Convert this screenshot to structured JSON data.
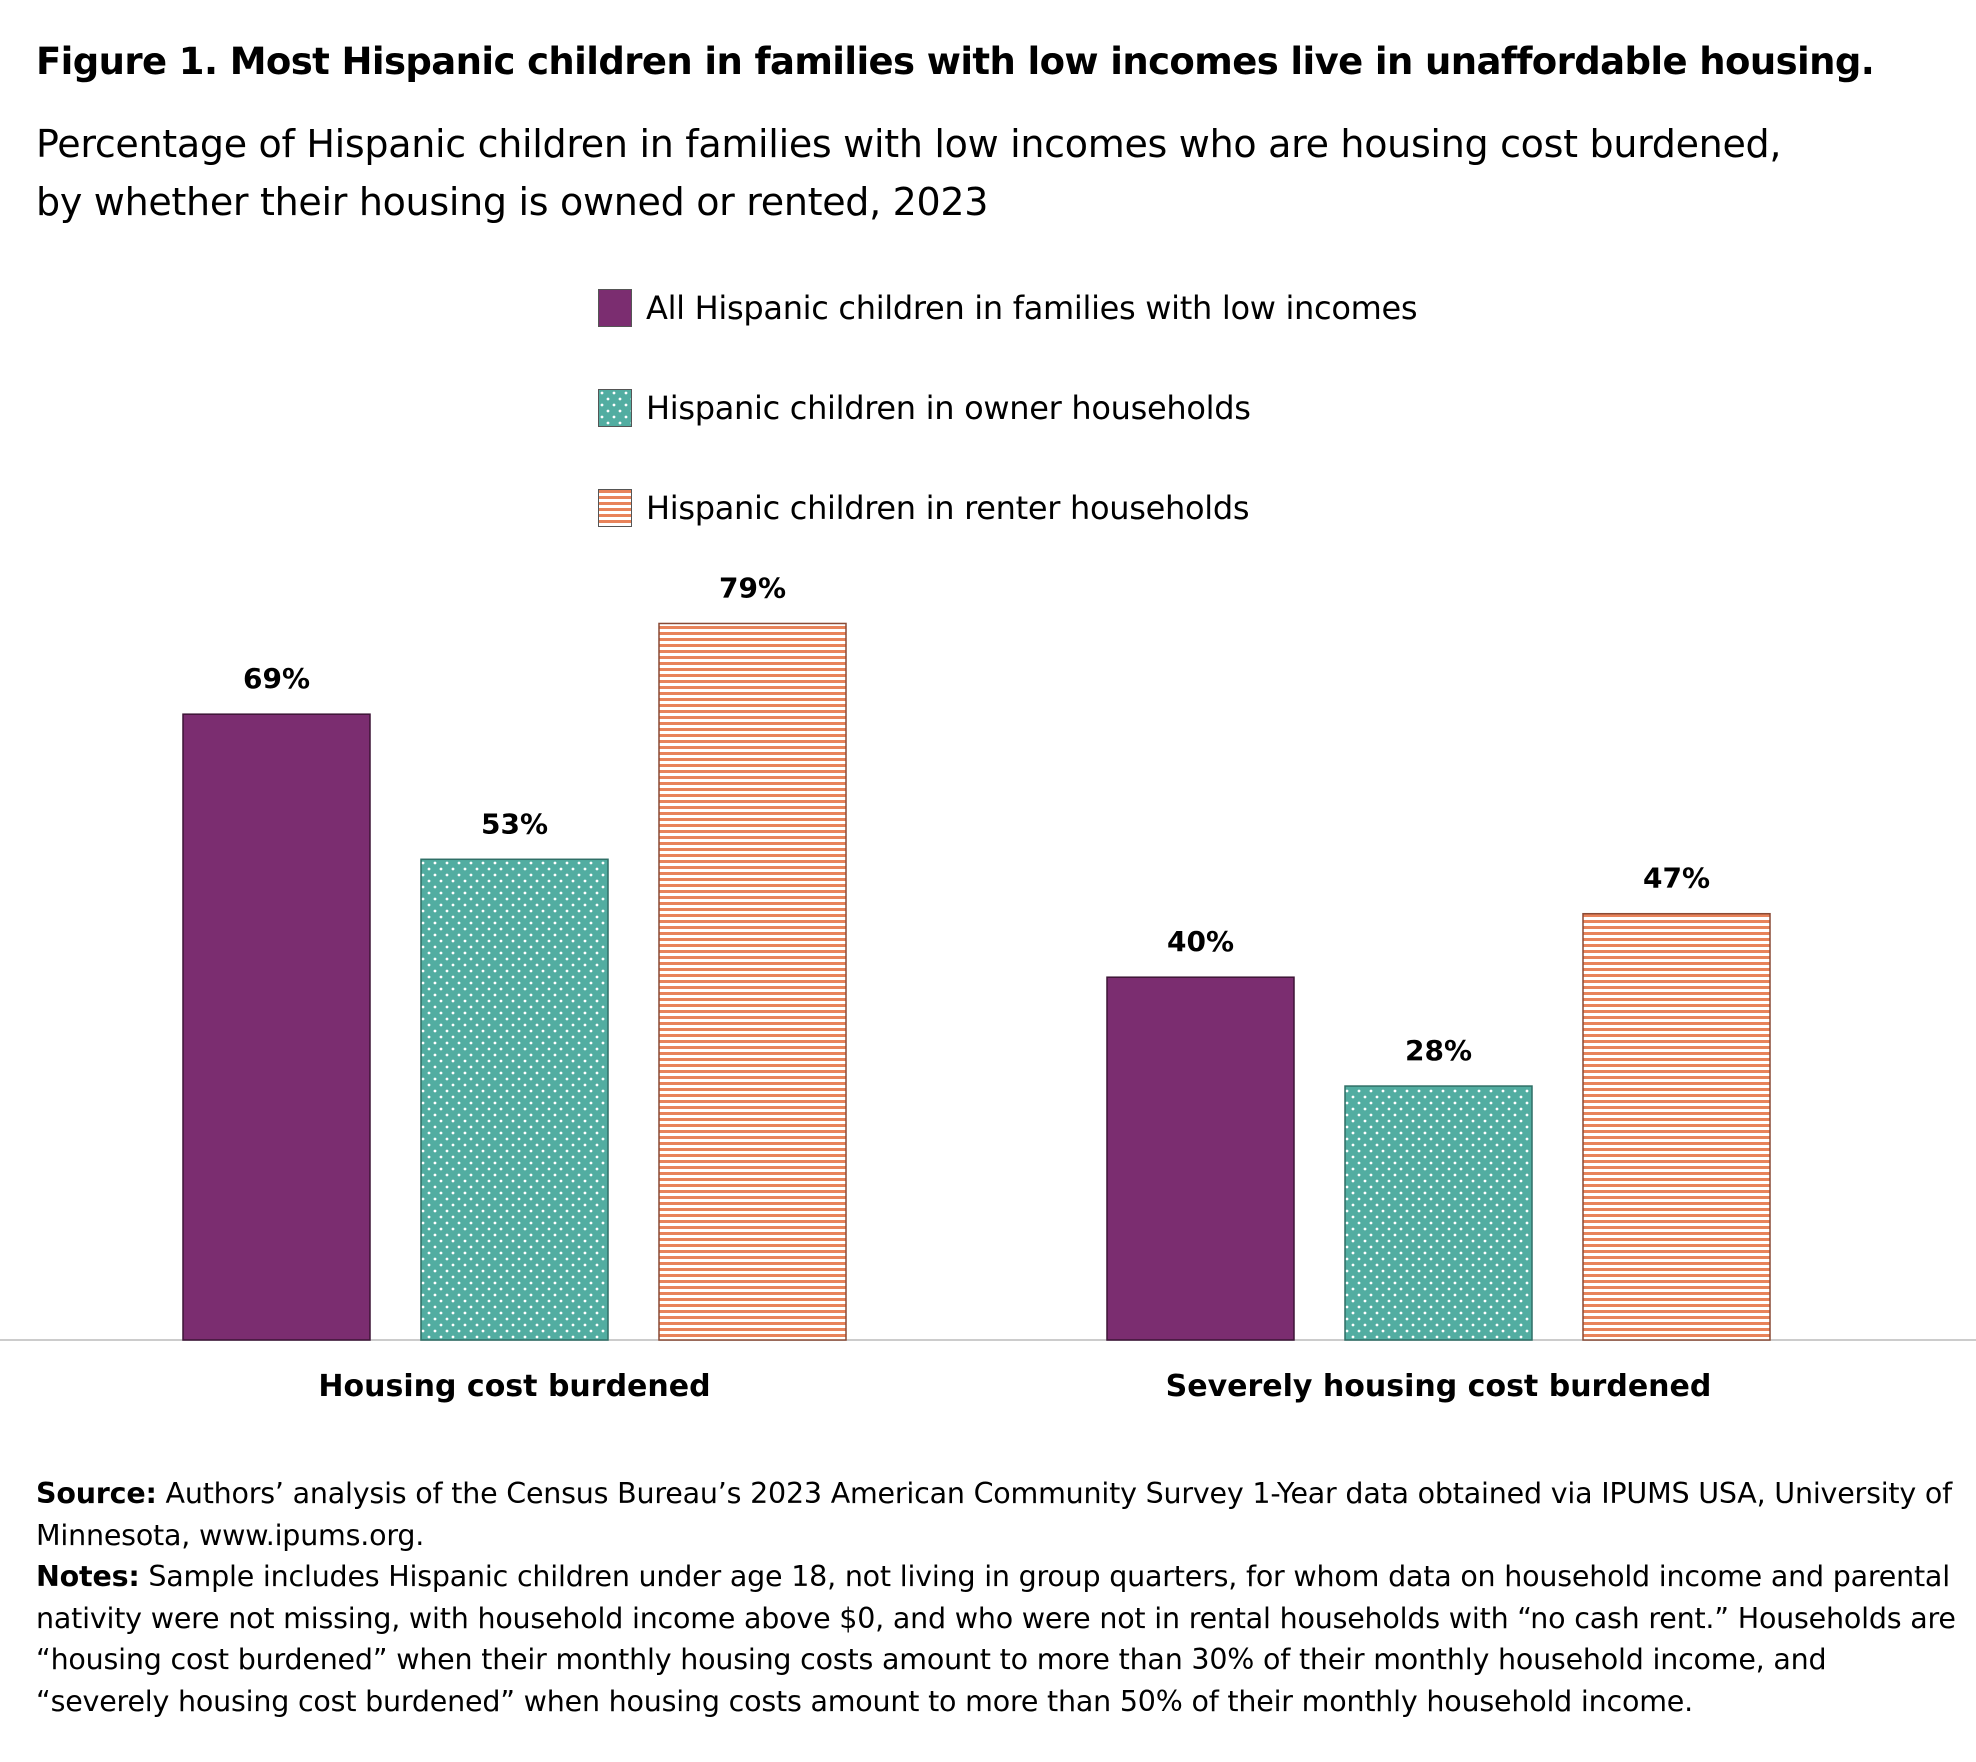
{
  "title": "Figure 1. Most Hispanic children in families with low incomes live in unaffordable housing.",
  "subtitle_line1": "Percentage of Hispanic children in families with low incomes who are housing cost burdened,",
  "subtitle_line2": "by whether their housing is owned or rented, 2023",
  "colors": {
    "all": "#7b2d70",
    "owner": "#52ada1",
    "renter": "#e8835a",
    "axis": "#cccccc"
  },
  "chart_data": {
    "type": "bar",
    "categories": [
      "Housing cost burdened",
      "Severely housing cost burdened"
    ],
    "series": [
      {
        "name": "All Hispanic children in families with low incomes",
        "values": [
          69,
          40
        ],
        "labels": [
          "69%",
          "40%"
        ],
        "pattern": "solid"
      },
      {
        "name": "Hispanic children in owner households",
        "values": [
          53,
          28
        ],
        "labels": [
          "53%",
          "28%"
        ],
        "pattern": "dots"
      },
      {
        "name": "Hispanic children in renter households",
        "values": [
          79,
          47
        ],
        "labels": [
          "79%",
          "47%"
        ],
        "pattern": "stripes"
      }
    ],
    "ylim": [
      0,
      100
    ],
    "legend": "top-center",
    "grid": false
  },
  "source": {
    "label": "Source:",
    "text": "Authors’ analysis of the Census Bureau’s 2023 American Community Survey 1-Year data obtained via IPUMS USA, University of Minnesota, www.ipums.org."
  },
  "notes": {
    "label": "Notes:",
    "text": "Sample includes Hispanic children under age 18, not living in group quarters, for whom data on household income and parental nativity were not missing, with household income above $0, and who were not in rental households with “no cash rent.” Households are “housing cost burdened” when their monthly housing costs amount to more than 30% of their monthly household income, and “severely housing cost burdened” when housing costs amount to more than 50% of their monthly household income."
  }
}
